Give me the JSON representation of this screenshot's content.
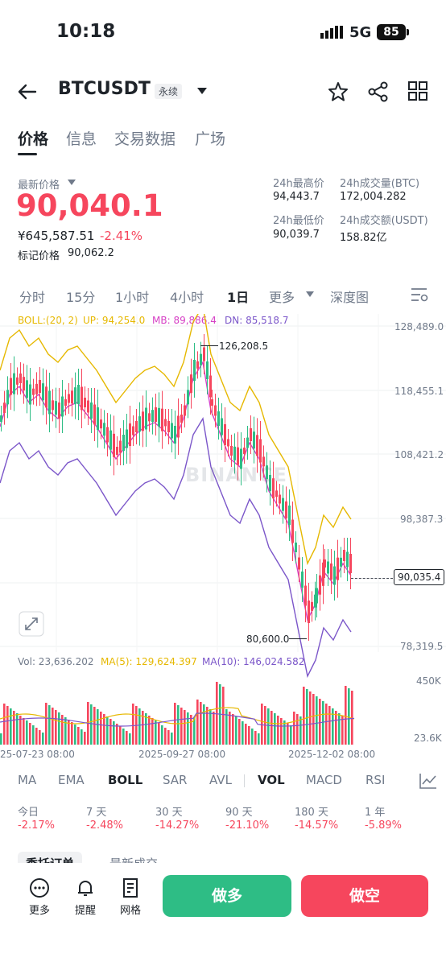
{
  "status": {
    "time": "10:18",
    "network": "5G",
    "battery": "85"
  },
  "header": {
    "symbol": "BTCUSDT",
    "contract_type": "永续"
  },
  "tabs": [
    "价格",
    "信息",
    "交易数据",
    "广场"
  ],
  "price": {
    "latest_label": "最新价格",
    "latest": "90,040.1",
    "cny": "¥645,587.51",
    "change_pct": "-2.41%",
    "mark_label": "标记价格",
    "mark": "90,062.2"
  },
  "stats": {
    "high_label": "24h最高价",
    "high": "94,443.7",
    "low_label": "24h最低价",
    "low": "90,039.7",
    "vol_btc_label": "24h成交量(BTC)",
    "vol_btc": "172,004.282",
    "vol_usdt_label": "24h成交额(USDT)",
    "vol_usdt": "158.82亿"
  },
  "intervals": [
    "分时",
    "15分",
    "1小时",
    "4小时",
    "1日",
    "更多",
    "深度图"
  ],
  "active_interval": "1日",
  "boll_legend": {
    "boll": "BOLL:(20, 2)",
    "up": "UP: 94,254.0",
    "mb": "MB: 89,886.4",
    "dn": "DN: 85,518.7"
  },
  "vol_legend": {
    "vol": "Vol: 23,636.202",
    "ma5": "MA(5): 129,624.397",
    "ma10": "MA(10): 146,024.582"
  },
  "chart_data": {
    "type": "candlestick",
    "y_ticks": [
      "128,489.0",
      "118,455.1",
      "108,421.2",
      "98,387.3",
      "78,319.5"
    ],
    "y_range": [
      78319.5,
      128489.0
    ],
    "high_marker": "126,208.5",
    "low_marker": "80,600.0",
    "current_price_label": "90,035.4",
    "x_labels": [
      "25-07-23 08:00",
      "2025-09-27 08:00",
      "2025-12-02 08:00"
    ],
    "volume_ticks": [
      "450K",
      "23.6K"
    ],
    "watermark": "BINANCE"
  },
  "indicators": [
    "MA",
    "EMA",
    "BOLL",
    "SAR",
    "AVL",
    "VOL",
    "MACD",
    "RSI"
  ],
  "performance": {
    "labels": [
      "今日",
      "7 天",
      "30 天",
      "90 天",
      "180 天",
      "1 年"
    ],
    "values": [
      "-2.17%",
      "-2.48%",
      "-14.27%",
      "-21.10%",
      "-14.57%",
      "-5.89%"
    ]
  },
  "partial_tabs": [
    "委托订单",
    "最新成交"
  ],
  "bottom": {
    "more": "更多",
    "alert": "提醒",
    "grid": "网格",
    "long": "做多",
    "short": "做空"
  },
  "colors": {
    "up": "#2ebd85",
    "down": "#f6465d",
    "boll_up": "#e6b800",
    "boll_mb": "#d63fc5",
    "boll_dn": "#7b56c9"
  }
}
